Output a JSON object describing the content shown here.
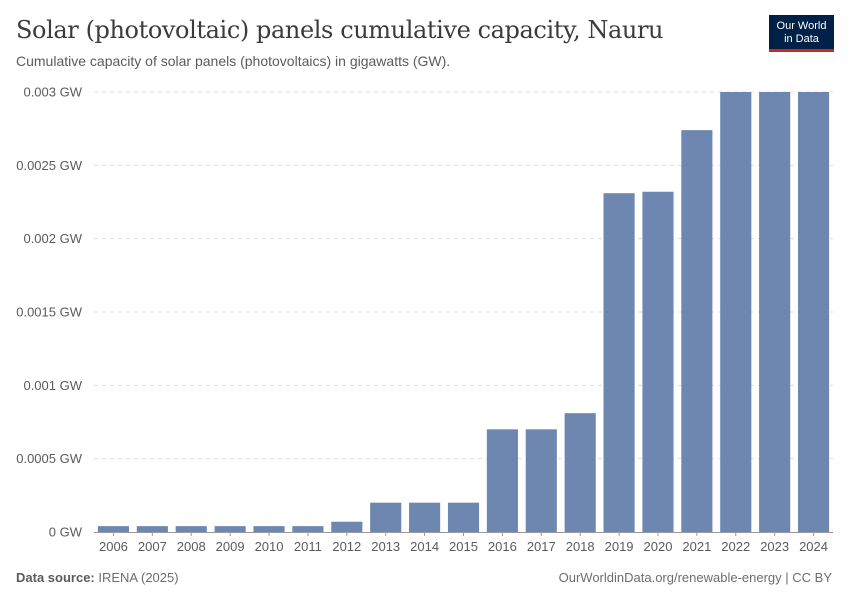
{
  "header": {
    "title": "Solar (photovoltaic) panels cumulative capacity, Nauru",
    "subtitle": "Cumulative capacity of solar panels (photovoltaics) in gigawatts (GW)."
  },
  "logo": {
    "line1": "Our World",
    "line2": "in Data"
  },
  "footer": {
    "source_label": "Data source:",
    "source_value": "IRENA (2025)",
    "right_text": "OurWorldinData.org/renewable-energy | CC BY"
  },
  "colors": {
    "bar": "#6d87b0",
    "grid": "#dddddd",
    "axis_text": "#5b5b5b",
    "axis_line": "#999999"
  },
  "chart_data": {
    "type": "bar",
    "title": "Solar (photovoltaic) panels cumulative capacity, Nauru",
    "xlabel": "",
    "ylabel": "",
    "unit": "GW",
    "categories": [
      "2006",
      "2007",
      "2008",
      "2009",
      "2010",
      "2011",
      "2012",
      "2013",
      "2014",
      "2015",
      "2016",
      "2017",
      "2018",
      "2019",
      "2020",
      "2021",
      "2022",
      "2023",
      "2024"
    ],
    "values": [
      4e-05,
      4e-05,
      4e-05,
      4e-05,
      4e-05,
      4e-05,
      7e-05,
      0.0002,
      0.0002,
      0.0002,
      0.0007,
      0.0007,
      0.00081,
      0.00231,
      0.00232,
      0.00274,
      0.003,
      0.003,
      0.003
    ],
    "ylim": [
      0,
      0.003
    ],
    "yticks": [
      0,
      0.0005,
      0.001,
      0.0015,
      0.002,
      0.0025,
      0.003
    ],
    "ytick_labels": [
      "0 GW",
      "0.0005 GW",
      "0.001 GW",
      "0.0015 GW",
      "0.002 GW",
      "0.0025 GW",
      "0.003 GW"
    ],
    "grid": true
  }
}
